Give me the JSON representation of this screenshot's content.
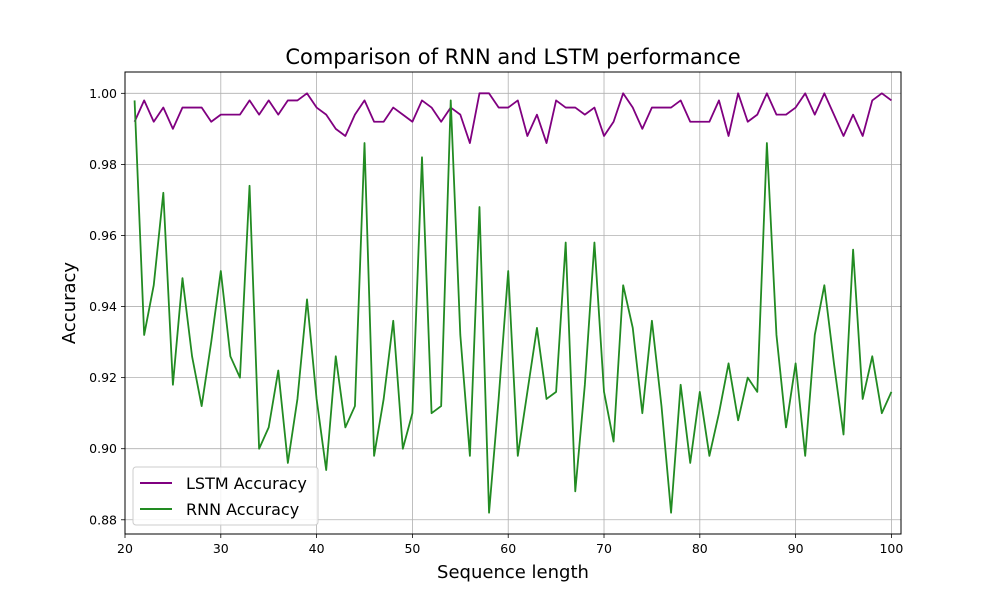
{
  "chart_data": {
    "type": "line",
    "title": "Comparison of RNN and LSTM performance",
    "xlabel": "Sequence length",
    "ylabel": "Accuracy",
    "xlim": [
      20,
      101
    ],
    "ylim": [
      0.876,
      1.006
    ],
    "xticks": [
      20,
      30,
      40,
      50,
      60,
      70,
      80,
      90,
      100
    ],
    "yticks": [
      0.88,
      0.9,
      0.92,
      0.94,
      0.96,
      0.98,
      1.0
    ],
    "xtick_labels": [
      "20",
      "30",
      "40",
      "50",
      "60",
      "70",
      "80",
      "90",
      "100"
    ],
    "ytick_labels": [
      "0.88",
      "0.90",
      "0.92",
      "0.94",
      "0.96",
      "0.98",
      "1.00"
    ],
    "grid": true,
    "legend_position": "bottom-left",
    "x": [
      21,
      22,
      23,
      24,
      25,
      26,
      27,
      28,
      29,
      30,
      31,
      32,
      33,
      34,
      35,
      36,
      37,
      38,
      39,
      40,
      41,
      42,
      43,
      44,
      45,
      46,
      47,
      48,
      49,
      50,
      51,
      52,
      53,
      54,
      55,
      56,
      57,
      58,
      59,
      60,
      61,
      62,
      63,
      64,
      65,
      66,
      67,
      68,
      69,
      70,
      71,
      72,
      73,
      74,
      75,
      76,
      77,
      78,
      79,
      80,
      81,
      82,
      83,
      84,
      85,
      86,
      87,
      88,
      89,
      90,
      91,
      92,
      93,
      94,
      95,
      96,
      97,
      98,
      99,
      100
    ],
    "series": [
      {
        "name": "LSTM Accuracy",
        "color": "#800080",
        "values": [
          0.992,
          0.998,
          0.992,
          0.996,
          0.99,
          0.996,
          0.996,
          0.996,
          0.992,
          0.994,
          0.994,
          0.994,
          0.998,
          0.994,
          0.998,
          0.994,
          0.998,
          0.998,
          1.0,
          0.996,
          0.994,
          0.99,
          0.988,
          0.994,
          0.998,
          0.992,
          0.992,
          0.996,
          0.994,
          0.992,
          0.998,
          0.996,
          0.992,
          0.996,
          0.994,
          0.986,
          1.0,
          1.0,
          0.996,
          0.996,
          0.998,
          0.988,
          0.994,
          0.986,
          0.998,
          0.996,
          0.996,
          0.994,
          0.996,
          0.988,
          0.992,
          1.0,
          0.996,
          0.99,
          0.996,
          0.996,
          0.996,
          0.998,
          0.992,
          0.992,
          0.992,
          0.998,
          0.988,
          1.0,
          0.992,
          0.994,
          1.0,
          0.994,
          0.994,
          0.996,
          1.0,
          0.994,
          1.0,
          0.994,
          0.988,
          0.994,
          0.988,
          0.998,
          1.0,
          0.998
        ]
      },
      {
        "name": "RNN Accuracy",
        "color": "#228b22",
        "values": [
          0.998,
          0.932,
          0.946,
          0.972,
          0.918,
          0.948,
          0.926,
          0.912,
          0.93,
          0.95,
          0.926,
          0.92,
          0.974,
          0.9,
          0.906,
          0.922,
          0.896,
          0.914,
          0.942,
          0.914,
          0.894,
          0.926,
          0.906,
          0.912,
          0.986,
          0.898,
          0.914,
          0.936,
          0.9,
          0.91,
          0.982,
          0.91,
          0.912,
          0.998,
          0.932,
          0.898,
          0.968,
          0.882,
          0.914,
          0.95,
          0.898,
          0.916,
          0.934,
          0.914,
          0.916,
          0.958,
          0.888,
          0.918,
          0.958,
          0.916,
          0.902,
          0.946,
          0.934,
          0.91,
          0.936,
          0.912,
          0.882,
          0.918,
          0.896,
          0.916,
          0.898,
          0.91,
          0.924,
          0.908,
          0.92,
          0.916,
          0.986,
          0.932,
          0.906,
          0.924,
          0.898,
          0.932,
          0.946,
          0.924,
          0.904,
          0.956,
          0.914,
          0.926,
          0.91,
          0.916
        ]
      }
    ]
  }
}
